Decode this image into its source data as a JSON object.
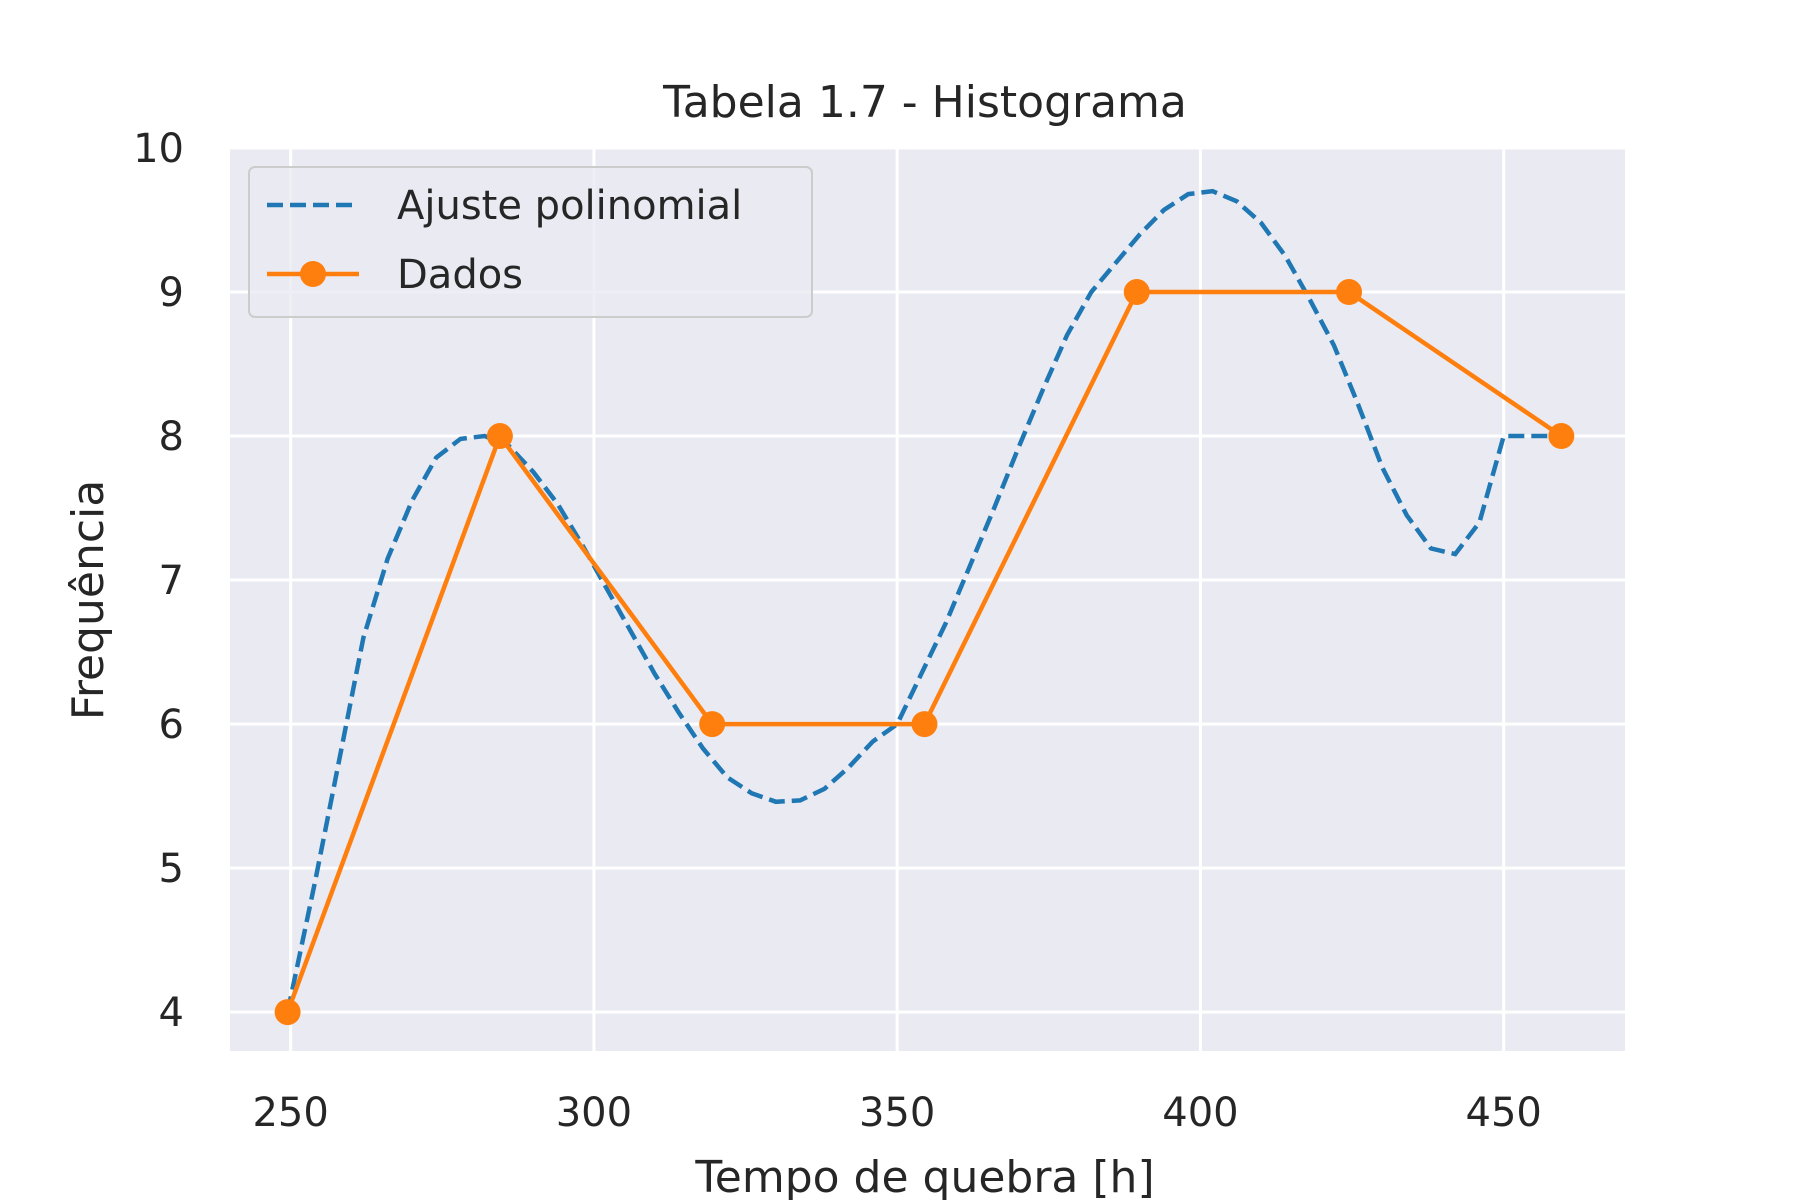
{
  "chart_data": {
    "type": "line",
    "title": "Tabela 1.7 - Histograma",
    "xlabel": "Tempo de quebra [h]",
    "ylabel": "Frequência",
    "xlim": [
      240,
      470
    ],
    "ylim": [
      3.73,
      10
    ],
    "xticks": [
      250,
      300,
      350,
      400,
      450
    ],
    "yticks": [
      4,
      5,
      6,
      7,
      8,
      9,
      10
    ],
    "grid": true,
    "legend_position": "top-left",
    "colors": {
      "background": "#eaeaf2",
      "grid": "#ffffff",
      "fit": "#1f77b4",
      "data": "#ff7f0e"
    },
    "series": [
      {
        "name": "Ajuste polinomial",
        "style": "dashed",
        "x": [
          249.5,
          254,
          258,
          262,
          266,
          270,
          274,
          278,
          282,
          286,
          290,
          294,
          298,
          302,
          306,
          310,
          314,
          318,
          322,
          326,
          330,
          334,
          338,
          342,
          346,
          350,
          354,
          358,
          362,
          366,
          370,
          374,
          378,
          382,
          386,
          390,
          394,
          398,
          402,
          406,
          410,
          414,
          418,
          422,
          426,
          430,
          434,
          438,
          442,
          446,
          450,
          454,
          458.5
        ],
        "y": [
          4.0,
          4.9,
          5.75,
          6.6,
          7.15,
          7.55,
          7.85,
          7.98,
          8.0,
          7.93,
          7.75,
          7.53,
          7.25,
          6.95,
          6.65,
          6.35,
          6.08,
          5.83,
          5.63,
          5.52,
          5.46,
          5.47,
          5.55,
          5.7,
          5.88,
          6.0,
          6.35,
          6.7,
          7.1,
          7.5,
          7.92,
          8.32,
          8.7,
          9.0,
          9.2,
          9.4,
          9.57,
          9.68,
          9.7,
          9.63,
          9.48,
          9.25,
          8.95,
          8.63,
          8.22,
          7.78,
          7.45,
          7.22,
          7.18,
          7.4,
          8.0,
          8.0,
          8.0
        ]
      },
      {
        "name": "Dados",
        "style": "solid-markers",
        "x": [
          249.5,
          284.5,
          319.5,
          354.5,
          389.5,
          424.5,
          459.5
        ],
        "y": [
          4,
          8,
          6,
          6,
          9,
          9,
          8
        ]
      }
    ]
  }
}
